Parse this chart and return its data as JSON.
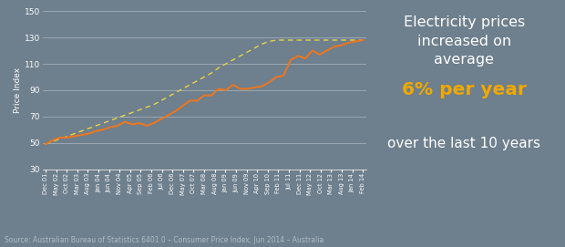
{
  "title_text": "Electricity prices\nincreased on\naverage",
  "highlight_text": "6% per year",
  "subtitle_text": "over the last 10 years",
  "source_text": "Source: Australian Bureau of Statistics 6401.0 – Consumer Price Index, Jun 2014 – Australia",
  "ylabel": "Price Index",
  "bg_color": "#6e7f8d",
  "plot_bg_color": "#6e7f8d",
  "line_color": "#e87722",
  "trend_color": "#e8d44d",
  "text_color": "#ffffff",
  "highlight_color": "#f0a800",
  "source_color": "#b0bec5",
  "ylim": [
    30,
    150
  ],
  "yticks": [
    30,
    50,
    70,
    90,
    110,
    130,
    150
  ],
  "x_labels": [
    "Dec 01",
    "May 02",
    "Oct 02",
    "Mar 03",
    "Aug 03",
    "Jan 04",
    "Jun 04",
    "Nov 04",
    "Apr 05",
    "Sep 05",
    "Feb 06",
    "Jul 06",
    "Dec 06",
    "May 07",
    "Oct 07",
    "Mar 08",
    "Aug 08",
    "Jan 09",
    "Jun 09",
    "Nov 09",
    "Apr 10",
    "Sep 10",
    "Feb 11",
    "Jul 11",
    "Dec 11",
    "May 12",
    "Oct 12",
    "Mar 13",
    "Aug 13",
    "Jan 14",
    "Feb 14"
  ],
  "values": [
    49,
    52,
    54,
    54,
    55,
    56,
    57,
    59,
    60,
    62,
    63,
    66,
    64,
    65,
    63,
    65,
    68,
    71,
    74,
    78,
    82,
    82,
    86,
    86,
    91,
    90,
    94,
    91,
    91,
    92,
    93,
    96,
    100,
    101,
    113,
    116,
    114,
    120,
    117,
    120,
    123,
    124,
    126,
    127,
    128
  ],
  "trend_values": [
    49,
    51,
    53,
    55,
    57,
    59,
    61,
    63,
    65,
    67,
    69,
    71,
    73,
    75,
    77,
    79,
    82,
    85,
    88,
    91,
    94,
    97,
    100,
    103,
    107,
    110,
    113,
    116,
    119,
    122,
    125,
    127,
    128,
    128,
    128,
    128,
    128,
    128,
    128,
    128,
    128,
    128,
    128,
    128,
    128
  ],
  "n_points": 45,
  "chart_ratio": 0.62
}
